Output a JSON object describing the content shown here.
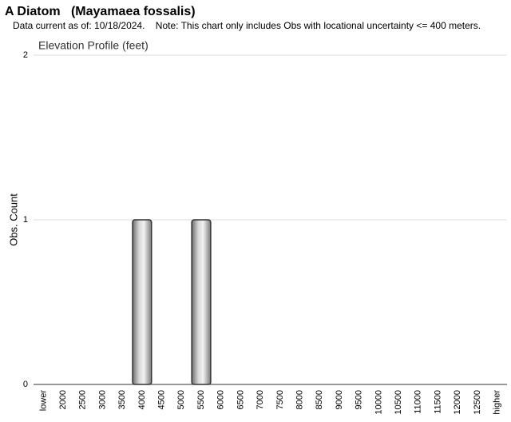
{
  "chart_data": {
    "type": "bar",
    "title": "A Diatom   (Mayamaea fossalis)",
    "subtitle": "Data current as of: 10/18/2024.    Note: This chart only includes Obs with locational uncertainty <= 400 meters.",
    "chart_title": "Elevation Profile (feet)",
    "y_label": "Obs. Count",
    "categories": [
      "lower",
      "2000",
      "2500",
      "3000",
      "3500",
      "4000",
      "4500",
      "5000",
      "5500",
      "6000",
      "6500",
      "7000",
      "7500",
      "8000",
      "8500",
      "9000",
      "9500",
      "10000",
      "10500",
      "11000",
      "11500",
      "12000",
      "12500",
      "higher"
    ],
    "values": [
      0,
      0,
      0,
      0,
      0,
      1,
      0,
      0,
      1,
      0,
      0,
      0,
      0,
      0,
      0,
      0,
      0,
      0,
      0,
      0,
      0,
      0,
      0,
      0
    ],
    "color": "#a0a0a0",
    "ylim": [
      0,
      2
    ],
    "yticks": [
      0,
      1,
      2
    ],
    "grid": true
  }
}
